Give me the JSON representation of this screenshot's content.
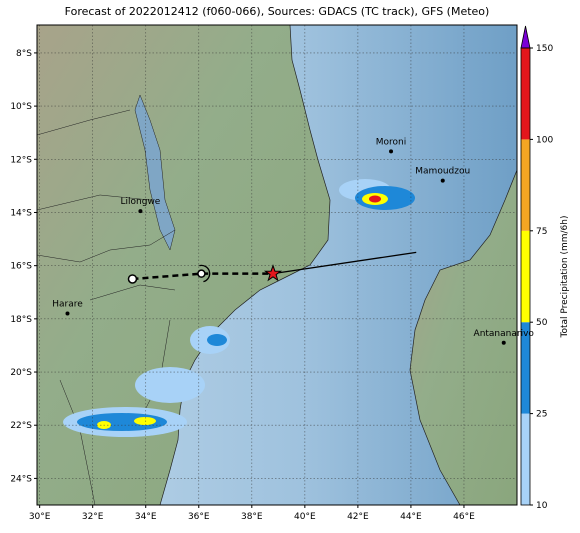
{
  "title": "Forecast of 2022012412 (f060-066), Sources: GDACS (TC track), GFS (Meteo)",
  "map": {
    "xlim": [
      29.9,
      48
    ],
    "ylim": [
      -25,
      -6.95
    ],
    "xticks": [
      {
        "value": 30,
        "label": "30°E"
      },
      {
        "value": 32,
        "label": "32°E"
      },
      {
        "value": 34,
        "label": "34°E"
      },
      {
        "value": 36,
        "label": "36°E"
      },
      {
        "value": 38,
        "label": "38°E"
      },
      {
        "value": 40,
        "label": "40°E"
      },
      {
        "value": 42,
        "label": "42°E"
      },
      {
        "value": 44,
        "label": "44°E"
      },
      {
        "value": 46,
        "label": "46°E"
      }
    ],
    "yticks": [
      {
        "value": -8,
        "label": "8°S"
      },
      {
        "value": -10,
        "label": "10°S"
      },
      {
        "value": -12,
        "label": "12°S"
      },
      {
        "value": -14,
        "label": "14°S"
      },
      {
        "value": -16,
        "label": "16°S"
      },
      {
        "value": -18,
        "label": "18°S"
      },
      {
        "value": -20,
        "label": "20°S"
      },
      {
        "value": -22,
        "label": "22°S"
      },
      {
        "value": -24,
        "label": "24°S"
      }
    ],
    "cities": [
      {
        "name": "Moroni",
        "lon": 43.25,
        "lat": -11.7
      },
      {
        "name": "Mamoudzou",
        "lon": 45.2,
        "lat": -12.8
      },
      {
        "name": "Lilongwe",
        "lon": 33.8,
        "lat": -13.95
      },
      {
        "name": "Harare",
        "lon": 31.05,
        "lat": -17.8
      },
      {
        "name": "Antananarivo",
        "lon": 47.5,
        "lat": -18.9
      }
    ],
    "track": [
      {
        "lon": 33.5,
        "lat": -16.5
      },
      {
        "lon": 36.1,
        "lat": -16.3
      },
      {
        "lon": 38.8,
        "lat": -16.3
      },
      {
        "lon": 44.2,
        "lat": -15.5
      }
    ]
  },
  "colorbar": {
    "label": "Total Precipitation (mm/6h)",
    "ticks": [
      10,
      25,
      50,
      75,
      100,
      150
    ],
    "colors": [
      "#a8d2f7",
      "#1e88d8",
      "#ffff00",
      "#f5a623",
      "#e3161c"
    ],
    "extend_color": "#7a00d6"
  }
}
